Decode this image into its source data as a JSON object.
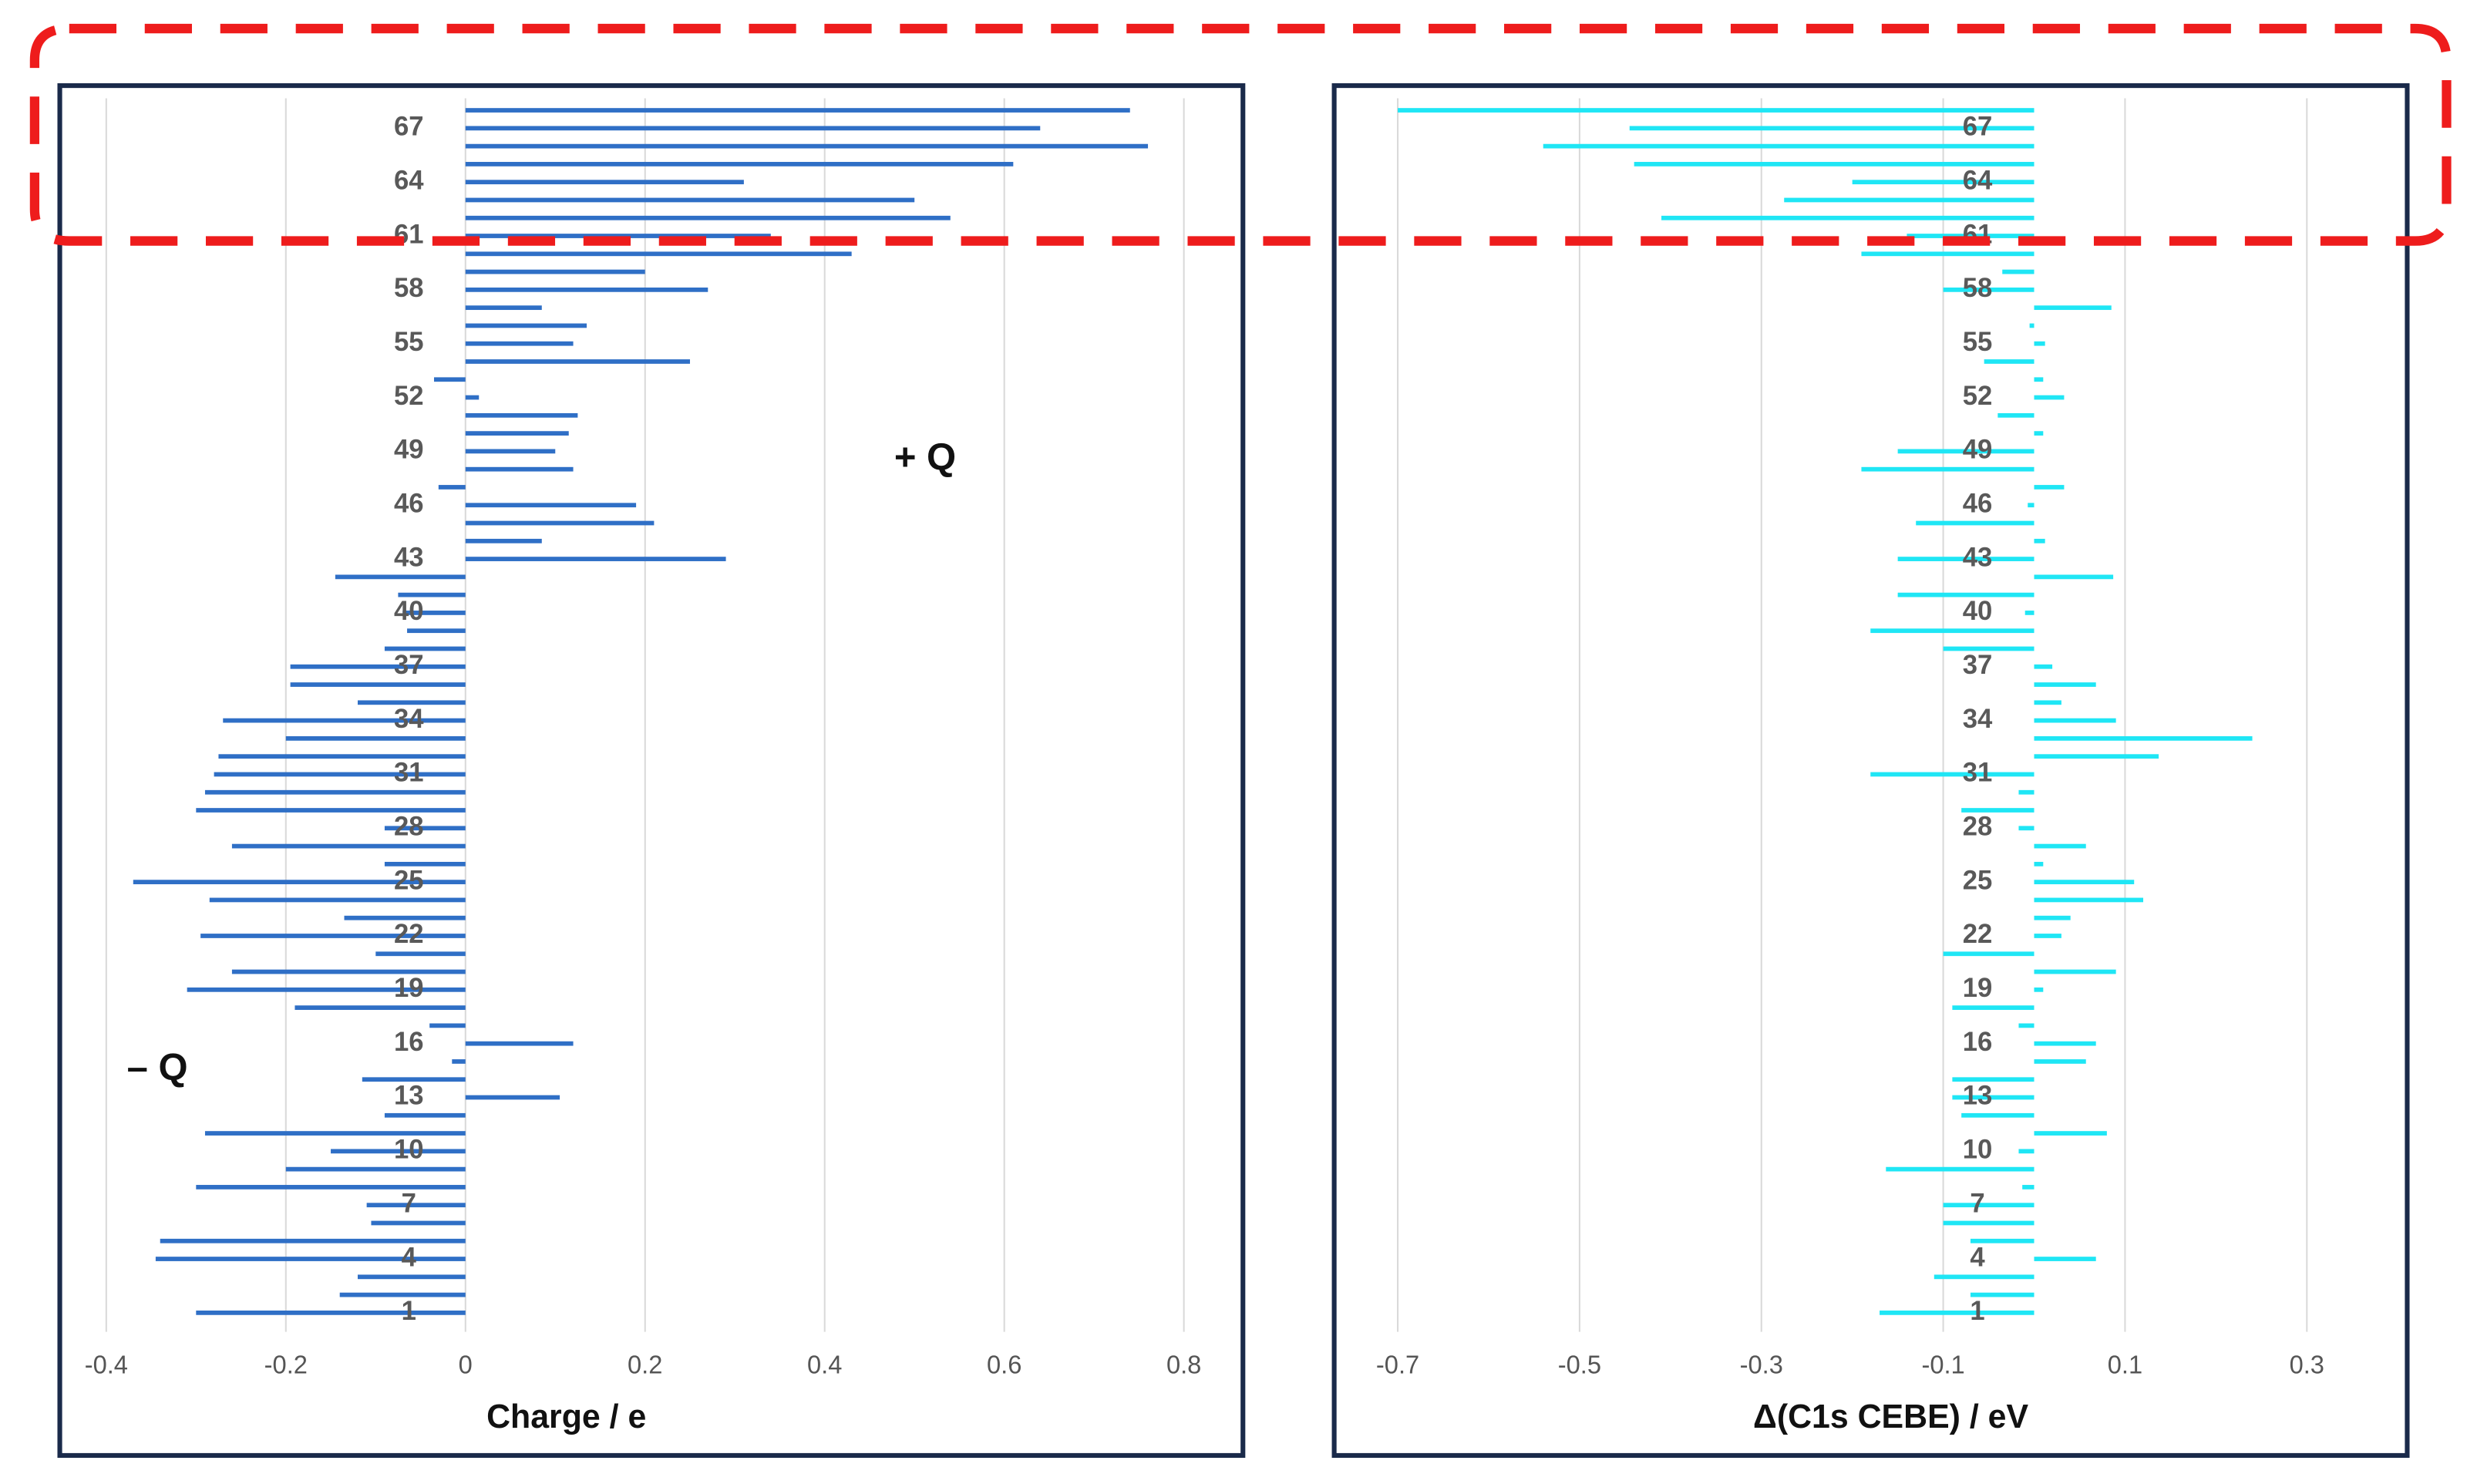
{
  "chart_data": [
    {
      "type": "barh",
      "xlabel": "Charge / e",
      "annotation": "+ Q",
      "annotation2": "– Q",
      "color": "#2f6fc6",
      "categories": [
        1,
        null,
        null,
        4,
        null,
        null,
        7,
        null,
        null,
        10,
        null,
        null,
        13,
        null,
        null,
        16,
        null,
        null,
        19,
        null,
        null,
        22,
        null,
        null,
        25,
        null,
        null,
        28,
        null,
        null,
        31,
        null,
        null,
        34,
        null,
        null,
        37,
        null,
        null,
        40,
        null,
        null,
        43,
        null,
        null,
        46,
        null,
        null,
        49,
        null,
        null,
        52,
        null,
        null,
        55,
        null,
        null,
        58,
        null,
        null,
        61,
        null,
        null,
        64,
        null,
        null,
        67,
        null
      ],
      "values": [
        -0.3,
        -0.14,
        -0.12,
        -0.345,
        -0.34,
        -0.105,
        -0.11,
        -0.3,
        -0.2,
        -0.15,
        -0.29,
        -0.09,
        0.105,
        -0.115,
        -0.015,
        0.12,
        -0.04,
        -0.19,
        -0.31,
        -0.26,
        -0.1,
        -0.295,
        -0.135,
        -0.285,
        -0.37,
        -0.09,
        -0.26,
        -0.09,
        -0.3,
        -0.29,
        -0.28,
        -0.275,
        -0.2,
        -0.27,
        -0.12,
        -0.195,
        -0.195,
        -0.09,
        -0.065,
        -0.07,
        -0.075,
        -0.145,
        0.29,
        0.085,
        0.21,
        0.19,
        -0.03,
        0.12,
        0.1,
        0.115,
        0.125,
        0.015,
        -0.035,
        0.25,
        0.12,
        0.135,
        0.085,
        0.27,
        0.2,
        0.43,
        0.34,
        0.54,
        0.5,
        0.31,
        0.61,
        0.76,
        0.64,
        0.74
      ],
      "xlim": [
        -0.45,
        0.85
      ],
      "xticks": [
        -0.4,
        -0.2,
        0,
        {
          "value": 0.2,
          "label": "0.2"
        },
        {
          "value": 0.4,
          "label": "0.4"
        },
        {
          "value": 0.6,
          "label": "0.6"
        },
        {
          "value": 0.8,
          "label": "0.8"
        }
      ],
      "grid": true
    },
    {
      "type": "barh",
      "xlabel": "Δ(C1s CEBE) / eV",
      "color": "#1fe6f5",
      "categories": [
        1,
        null,
        null,
        4,
        null,
        null,
        7,
        null,
        null,
        10,
        null,
        null,
        13,
        null,
        null,
        16,
        null,
        null,
        19,
        null,
        null,
        22,
        null,
        null,
        25,
        null,
        null,
        28,
        null,
        null,
        31,
        null,
        null,
        34,
        null,
        null,
        37,
        null,
        null,
        40,
        null,
        null,
        43,
        null,
        null,
        46,
        null,
        null,
        49,
        null,
        null,
        52,
        null,
        null,
        55,
        null,
        null,
        58,
        null,
        null,
        61,
        null,
        null,
        64,
        null,
        null,
        67,
        null
      ],
      "values": [
        -0.17,
        -0.07,
        -0.11,
        0.068,
        -0.07,
        -0.1,
        -0.1,
        -0.013,
        -0.163,
        -0.017,
        0.08,
        -0.08,
        -0.09,
        -0.09,
        0.057,
        0.068,
        -0.017,
        -0.09,
        0.01,
        0.09,
        -0.1,
        0.03,
        0.04,
        0.12,
        0.11,
        0.01,
        0.057,
        -0.017,
        -0.08,
        -0.017,
        -0.18,
        0.137,
        0.24,
        0.09,
        0.03,
        0.068,
        0.02,
        -0.1,
        -0.18,
        -0.01,
        -0.15,
        0.087,
        -0.15,
        0.012,
        -0.13,
        -0.007,
        0.033,
        -0.19,
        -0.15,
        0.01,
        -0.04,
        0.033,
        0.01,
        -0.055,
        0.012,
        -0.005,
        0.085,
        -0.1,
        -0.035,
        -0.19,
        -0.14,
        -0.41,
        -0.275,
        -0.2,
        -0.44,
        -0.54,
        -0.445,
        -0.7
      ],
      "xlim": [
        -0.75,
        0.4
      ],
      "xticks": [
        -0.7,
        -0.5,
        -0.3,
        -0.1,
        0.1,
        0.3
      ],
      "grid": true
    }
  ]
}
